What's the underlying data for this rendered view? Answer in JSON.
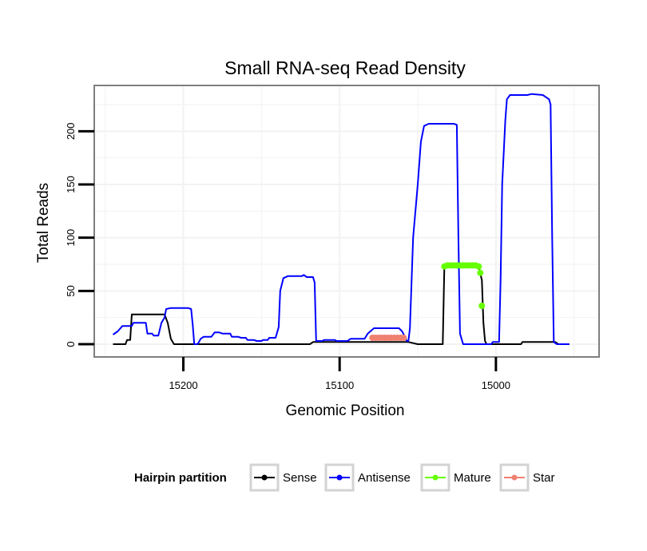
{
  "chart_data": {
    "type": "line",
    "title": "Small RNA-seq Read Density",
    "xlabel": "Genomic Position",
    "ylabel": "Total Reads",
    "x_reversed": true,
    "xlim": [
      15257,
      14934
    ],
    "ylim": [
      -12,
      243
    ],
    "xticks": [
      15200,
      15100,
      15000
    ],
    "yticks": [
      0,
      50,
      100,
      150,
      200
    ],
    "grid": true,
    "legend": {
      "title": "Hairpin partition",
      "position": "bottom",
      "entries": [
        {
          "label": "Sense",
          "color": "#000000"
        },
        {
          "label": "Antisense",
          "color": "#0000ff"
        },
        {
          "label": "Mature",
          "color": "#66ff00"
        },
        {
          "label": "Star",
          "color": "#f08070"
        }
      ]
    },
    "series": [
      {
        "name": "Sense",
        "color": "#000000",
        "style": "line",
        "points": [
          [
            15245,
            0
          ],
          [
            15237,
            0
          ],
          [
            15236,
            4
          ],
          [
            15234,
            4
          ],
          [
            15233,
            28
          ],
          [
            15224,
            28
          ],
          [
            15212,
            28
          ],
          [
            15210,
            20
          ],
          [
            15208,
            5
          ],
          [
            15206,
            0
          ],
          [
            15195,
            0
          ],
          [
            15150,
            0
          ],
          [
            15119,
            0
          ],
          [
            15117,
            2
          ],
          [
            15080,
            2
          ],
          [
            15062,
            2
          ],
          [
            15056,
            2
          ],
          [
            15050,
            0
          ],
          [
            15034,
            0
          ],
          [
            15033,
            73
          ],
          [
            15016,
            73
          ],
          [
            15011,
            73
          ],
          [
            15009,
            60
          ],
          [
            15008,
            20
          ],
          [
            15007,
            3
          ],
          [
            15006,
            0
          ],
          [
            15000,
            0
          ],
          [
            14984,
            0
          ],
          [
            14983,
            2
          ],
          [
            14968,
            2
          ],
          [
            14962,
            2
          ],
          [
            14960,
            0
          ],
          [
            14953,
            0
          ]
        ]
      },
      {
        "name": "Antisense",
        "color": "#0000ff",
        "style": "line",
        "points": [
          [
            15245,
            9
          ],
          [
            15242,
            12
          ],
          [
            15239,
            17
          ],
          [
            15233,
            17
          ],
          [
            15232,
            20
          ],
          [
            15224,
            20
          ],
          [
            15223,
            10
          ],
          [
            15220,
            10
          ],
          [
            15219,
            8
          ],
          [
            15216,
            8
          ],
          [
            15214,
            20
          ],
          [
            15212,
            25
          ],
          [
            15211,
            33
          ],
          [
            15208,
            34
          ],
          [
            15197,
            34
          ],
          [
            15195,
            33
          ],
          [
            15194,
            18
          ],
          [
            15193,
            0
          ],
          [
            15191,
            0
          ],
          [
            15190,
            2
          ],
          [
            15189,
            5
          ],
          [
            15187,
            7
          ],
          [
            15182,
            7
          ],
          [
            15180,
            11
          ],
          [
            15177,
            11
          ],
          [
            15175,
            10
          ],
          [
            15170,
            10
          ],
          [
            15169,
            7
          ],
          [
            15165,
            7
          ],
          [
            15163,
            6
          ],
          [
            15160,
            6
          ],
          [
            15159,
            4
          ],
          [
            15155,
            4
          ],
          [
            15153,
            3
          ],
          [
            15150,
            3
          ],
          [
            15149,
            4
          ],
          [
            15146,
            4
          ],
          [
            15145,
            6
          ],
          [
            15141,
            6
          ],
          [
            15139,
            16
          ],
          [
            15138,
            50
          ],
          [
            15136,
            62
          ],
          [
            15133,
            64
          ],
          [
            15124,
            64
          ],
          [
            15123,
            65
          ],
          [
            15121,
            63
          ],
          [
            15117,
            63
          ],
          [
            15116,
            58
          ],
          [
            15115,
            3
          ],
          [
            15111,
            3
          ],
          [
            15110,
            4
          ],
          [
            15103,
            4
          ],
          [
            15102,
            3
          ],
          [
            15095,
            3
          ],
          [
            15093,
            5
          ],
          [
            15084,
            5
          ],
          [
            15082,
            10
          ],
          [
            15078,
            15
          ],
          [
            15062,
            15
          ],
          [
            15060,
            12
          ],
          [
            15057,
            3
          ],
          [
            15056,
            3
          ],
          [
            15055,
            15
          ],
          [
            15053,
            100
          ],
          [
            15050,
            150
          ],
          [
            15048,
            190
          ],
          [
            15046,
            205
          ],
          [
            15043,
            207
          ],
          [
            15027,
            207
          ],
          [
            15025,
            206
          ],
          [
            15024,
            100
          ],
          [
            15023,
            10
          ],
          [
            15021,
            0
          ],
          [
            15003,
            0
          ],
          [
            15002,
            2
          ],
          [
            14998,
            2
          ],
          [
            14997,
            60
          ],
          [
            14996,
            150
          ],
          [
            14994,
            210
          ],
          [
            14993,
            230
          ],
          [
            14991,
            234
          ],
          [
            14980,
            234
          ],
          [
            14977,
            235
          ],
          [
            14970,
            234
          ],
          [
            14966,
            230
          ],
          [
            14965,
            225
          ],
          [
            14964,
            100
          ],
          [
            14963,
            2
          ],
          [
            14961,
            0
          ],
          [
            14953,
            0
          ]
        ]
      },
      {
        "name": "Mature",
        "color": "#66ff00",
        "style": "dots",
        "points": [
          [
            15033,
            73
          ],
          [
            15031,
            74
          ],
          [
            15029,
            74
          ],
          [
            15027,
            74
          ],
          [
            15025,
            74
          ],
          [
            15023,
            74
          ],
          [
            15021,
            74
          ],
          [
            15019,
            74
          ],
          [
            15017,
            74
          ],
          [
            15015,
            74
          ],
          [
            15013,
            74
          ],
          [
            15011,
            73
          ],
          [
            15010,
            67
          ],
          [
            15009,
            36
          ]
        ]
      },
      {
        "name": "Star",
        "color": "#f08070",
        "style": "dots",
        "points": [
          [
            15079,
            6
          ],
          [
            15077,
            6
          ],
          [
            15075,
            6
          ],
          [
            15073,
            6
          ],
          [
            15071,
            6
          ],
          [
            15069,
            6
          ],
          [
            15067,
            6
          ],
          [
            15065,
            6
          ],
          [
            15063,
            6
          ],
          [
            15061,
            6
          ],
          [
            15059,
            6
          ]
        ]
      }
    ]
  }
}
